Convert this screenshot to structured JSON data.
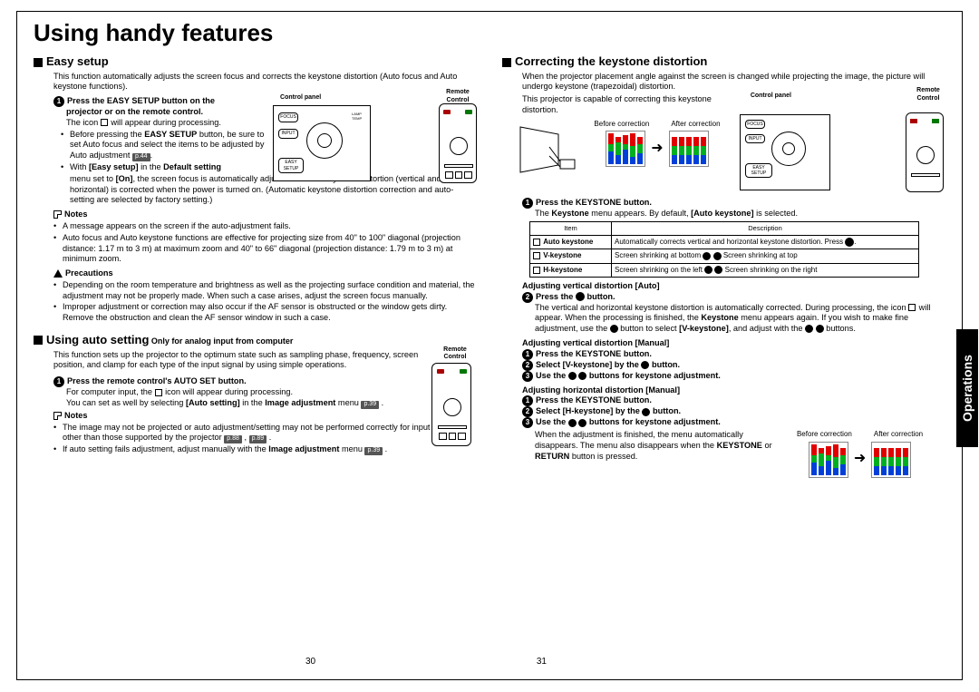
{
  "title": "Using handy features",
  "sideTab": "Operations",
  "pageLeft": "30",
  "pageRight": "31",
  "labels": {
    "controlPanel": "Control panel",
    "remoteControl": "Remote Control",
    "beforeCorrection": "Before correction",
    "afterCorrection": "After correction"
  },
  "left": {
    "easy": {
      "heading": "Easy setup",
      "intro": "This function automatically adjusts the screen focus and corrects the keystone distortion (Auto focus and Auto keystone functions).",
      "step1a": "Press the EASY SETUP button on the",
      "step1b": "projector or on the remote control.",
      "step1_l1a": "The icon ",
      "step1_l1b": " will appear during processing.",
      "step1_b1a": "Before pressing the ",
      "step1_b1b": "EASY SETUP",
      "step1_b1c": " button, be sure to set Auto focus and select the items to be adjusted by Auto adjustment ",
      "step1_b1d": ".",
      "pref44": "p.44",
      "step1_b2a": "With ",
      "step1_b2b": "[Easy setup]",
      "step1_b2c": " in the ",
      "step1_b2d": "Default setting",
      "step1_b2e": " menu set to ",
      "step1_b2f": "[On]",
      "step1_b2g": ", the screen focus is automatically adjusted and the keystone distortion (vertical and horizontal) is corrected when the power is turned on. (Automatic keystone distortion correction and auto-setting are selected by factory setting.)",
      "notesLabel": "Notes",
      "note1": "A message appears on the screen if the auto-adjustment fails.",
      "note2": "Auto focus and Auto keystone functions are effective for projecting size from 40\" to 100\" diagonal (projection distance: 1.17 m to 3 m) at maximum zoom and 40\" to 66\" diagonal (projection distance: 1.79 m to 3 m) at minimum zoom.",
      "precautionsLabel": "Precautions",
      "prec1": "Depending on the room temperature and brightness as well as the projecting surface condition and material, the adjustment may not be properly made. When such a case arises, adjust the screen focus manually.",
      "prec2": "Improper adjustment or correction may also occur if the AF sensor is obstructed or the window gets dirty. Remove the obstruction and clean the AF sensor window in such a case."
    },
    "auto": {
      "heading": "Using auto setting",
      "headingSuffix": " Only for analog input from computer",
      "intro": "This function sets up the projector to the optimum state such as sampling phase, frequency, screen position, and clamp for each type of the input signal by using simple operations.",
      "step1": "Press the remote control's AUTO SET button.",
      "l1a": "For computer input, the ",
      "l1b": " icon will appear during processing.",
      "l2a": "You can set as well by selecting ",
      "l2b": "[Auto setting]",
      "l2c": " in the ",
      "l2d": "Image adjustment",
      "l2e": " menu ",
      "pref39": "p.39",
      "notesLabel": "Notes",
      "note1a": "The image may not be projected or auto adjustment/setting may not be performed correctly for input signals other than those supported by the projector ",
      "pref88": "p.88",
      "comma": " , ",
      "pref89": "p.89",
      "period": " .",
      "note2a": "If auto setting fails adjustment, adjust manually with the ",
      "note2b": "Image adjustment",
      "note2c": " menu "
    }
  },
  "right": {
    "heading": "Correcting the keystone distortion",
    "intro": "When the projector placement angle against the screen is changed while projecting the image, the picture will undergo keystone (trapezoidal) distortion.",
    "intro2": "This projector is capable of correcting this keystone distortion.",
    "step1": "Press the KEYSTONE button.",
    "step1_l1a": "The ",
    "step1_l1b": "Keystone",
    "step1_l1c": " menu appears. By default, ",
    "step1_l1d": "[Auto keystone]",
    "step1_l1e": " is selected.",
    "table": {
      "hItem": "Item",
      "hDesc": "Description",
      "r1_item": "Auto keystone",
      "r1_desc": "Automatically corrects vertical and horizontal keystone distortion. Press ",
      "r2_item": "V-keystone",
      "r2_desc_a": "Screen shrinking at bottom ",
      "r2_desc_b": " Screen shrinking at top",
      "r3_item": "H-keystone",
      "r3_desc_a": "Screen shrinking on the left ",
      "r3_desc_b": " Screen shrinking on the right"
    },
    "adjVAuto": "Adjusting vertical distortion [Auto]",
    "step2": "Press the ",
    "step2b": " button.",
    "step2_l1a": "The vertical and horizontal keystone distortion is automatically corrected. During processing, the icon ",
    "step2_l1b": " will appear. When the processing is finished, the ",
    "step2_l1c": "Keystone",
    "step2_l1d": " menu appears again. If you wish to make fine adjustment, use the ",
    "step2_l1e": " button to select ",
    "step2_l1f": "[V-keystone]",
    "step2_l1g": ", and adjust with the ",
    "step2_l1h": " buttons.",
    "adjVMan": "Adjusting vertical distortion [Manual]",
    "m1": "Press the KEYSTONE button.",
    "m2a": "Select [V-keystone] by the ",
    "m2b": " button.",
    "m3a": "Use the ",
    "m3b": " buttons for keystone adjustment.",
    "adjHMan": "Adjusting horizontal distortion [Manual]",
    "h1": "Press the KEYSTONE button.",
    "h2a": "Select [H-keystone] by the ",
    "h2b": " button.",
    "h3a": "Use the ",
    "h3b": " buttons for keystone adjustment.",
    "finish": "When the adjustment is finished, the menu automatically disappears. The menu also disappears when the ",
    "finish_b1": "KEYSTONE",
    "finish_mid": " or ",
    "finish_b2": "RETURN",
    "finish_end": " button is pressed."
  },
  "chart": {
    "colors": {
      "blue": "#0040d8",
      "green": "#00b020",
      "red": "#e00000",
      "grid": "#bbbbbb"
    },
    "before_heights": [
      [
        14,
        8,
        12
      ],
      [
        10,
        14,
        6
      ],
      [
        16,
        6,
        10
      ],
      [
        8,
        12,
        14
      ],
      [
        12,
        10,
        8
      ]
    ],
    "after_heights": [
      [
        10,
        10,
        10
      ],
      [
        10,
        10,
        10
      ],
      [
        10,
        10,
        10
      ],
      [
        10,
        10,
        10
      ],
      [
        10,
        10,
        10
      ]
    ]
  }
}
